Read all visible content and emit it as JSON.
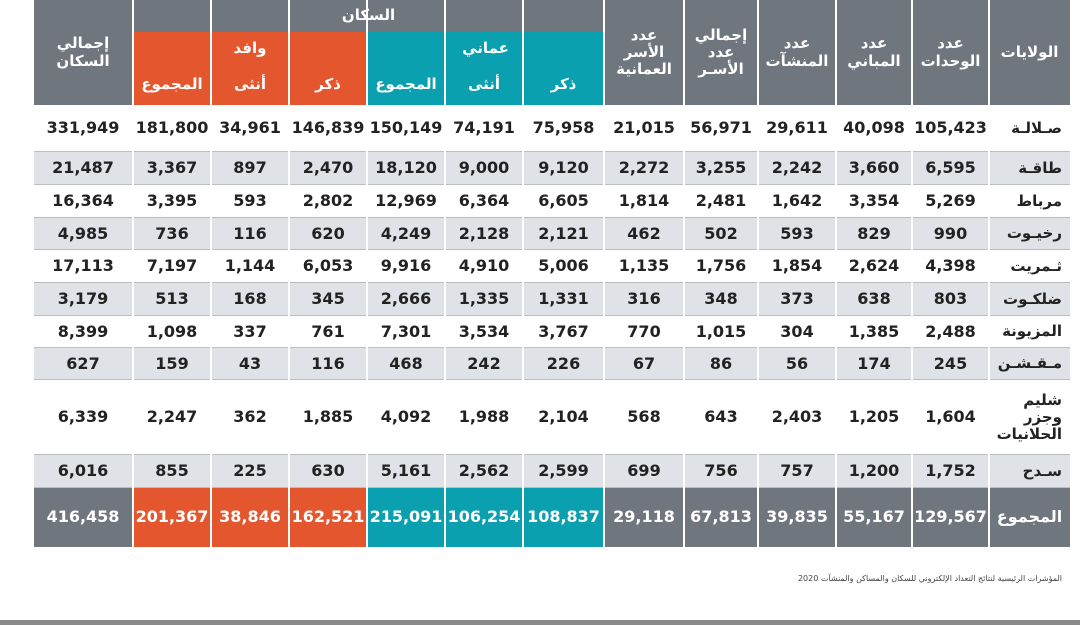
{
  "header": {
    "wilayat": "الولايات",
    "units": "عدد\nالوحدات",
    "buildings": "عدد\nالمباني",
    "establishments": "عدد\nالمنشآت",
    "total_households": "إجمالي\nعدد\nالأسـر",
    "omani_households": "عدد\nالأسر\nالعمانية",
    "population": "السكان",
    "omani": "عماني",
    "expat": "وافد",
    "male": "ذكر",
    "female": "أنثى",
    "total": "المجموع",
    "total_population": "إجمالي\nالسكان"
  },
  "rows": [
    {
      "name": "صـلالـة",
      "units": "105,423",
      "buildings": "40,098",
      "establishments": "29,611",
      "households": "56,971",
      "omani_households": "21,015",
      "om_male": "75,958",
      "om_female": "74,191",
      "om_total": "150,149",
      "ex_male": "146,839",
      "ex_female": "34,961",
      "ex_total": "181,800",
      "total_pop": "331,949"
    },
    {
      "name": "طاقـة",
      "units": "6,595",
      "buildings": "3,660",
      "establishments": "2,242",
      "households": "3,255",
      "omani_households": "2,272",
      "om_male": "9,120",
      "om_female": "9,000",
      "om_total": "18,120",
      "ex_male": "2,470",
      "ex_female": "897",
      "ex_total": "3,367",
      "total_pop": "21,487"
    },
    {
      "name": "مرباط",
      "units": "5,269",
      "buildings": "3,354",
      "establishments": "1,642",
      "households": "2,481",
      "omani_households": "1,814",
      "om_male": "6,605",
      "om_female": "6,364",
      "om_total": "12,969",
      "ex_male": "2,802",
      "ex_female": "593",
      "ex_total": "3,395",
      "total_pop": "16,364"
    },
    {
      "name": "رخيـوت",
      "units": "990",
      "buildings": "829",
      "establishments": "593",
      "households": "502",
      "omani_households": "462",
      "om_male": "2,121",
      "om_female": "2,128",
      "om_total": "4,249",
      "ex_male": "620",
      "ex_female": "116",
      "ex_total": "736",
      "total_pop": "4,985"
    },
    {
      "name": "ثـمريت",
      "units": "4,398",
      "buildings": "2,624",
      "establishments": "1,854",
      "households": "1,756",
      "omani_households": "1,135",
      "om_male": "5,006",
      "om_female": "4,910",
      "om_total": "9,916",
      "ex_male": "6,053",
      "ex_female": "1,144",
      "ex_total": "7,197",
      "total_pop": "17,113"
    },
    {
      "name": "ضلكـوت",
      "units": "803",
      "buildings": "638",
      "establishments": "373",
      "households": "348",
      "omani_households": "316",
      "om_male": "1,331",
      "om_female": "1,335",
      "om_total": "2,666",
      "ex_male": "345",
      "ex_female": "168",
      "ex_total": "513",
      "total_pop": "3,179"
    },
    {
      "name": "المزيونة",
      "units": "2,488",
      "buildings": "1,385",
      "establishments": "304",
      "households": "1,015",
      "omani_households": "770",
      "om_male": "3,767",
      "om_female": "3,534",
      "om_total": "7,301",
      "ex_male": "761",
      "ex_female": "337",
      "ex_total": "1,098",
      "total_pop": "8,399"
    },
    {
      "name": "مـقـشـن",
      "units": "245",
      "buildings": "174",
      "establishments": "56",
      "households": "86",
      "omani_households": "67",
      "om_male": "226",
      "om_female": "242",
      "om_total": "468",
      "ex_male": "116",
      "ex_female": "43",
      "ex_total": "159",
      "total_pop": "627"
    },
    {
      "name": "شليم\nوجزر\nالحلانيات",
      "units": "1,604",
      "buildings": "1,205",
      "establishments": "2,403",
      "households": "643",
      "omani_households": "568",
      "om_male": "2,104",
      "om_female": "1,988",
      "om_total": "4,092",
      "ex_male": "1,885",
      "ex_female": "362",
      "ex_total": "2,247",
      "total_pop": "6,339"
    },
    {
      "name": "سـدح",
      "units": "1,752",
      "buildings": "1,200",
      "establishments": "757",
      "households": "756",
      "omani_households": "699",
      "om_male": "2,599",
      "om_female": "2,562",
      "om_total": "5,161",
      "ex_male": "630",
      "ex_female": "225",
      "ex_total": "855",
      "total_pop": "6,016"
    }
  ],
  "totals": {
    "name": "المجموع",
    "units": "129,567",
    "buildings": "55,167",
    "establishments": "39,835",
    "households": "67,813",
    "omani_households": "29,118",
    "om_male": "108,837",
    "om_female": "106,254",
    "om_total": "215,091",
    "ex_male": "162,521",
    "ex_female": "38,846",
    "ex_total": "201,367",
    "total_pop": "416,458"
  },
  "footer": "المؤشرات الرئيسية لنتائج التعداد الإلكتروني للسكان والمساكن والمنشآت 2020",
  "colors": {
    "header": "#6f767d",
    "expat": "#e4572e",
    "omani": "#0aa0b0",
    "row_alt": "#dfe3e8"
  }
}
